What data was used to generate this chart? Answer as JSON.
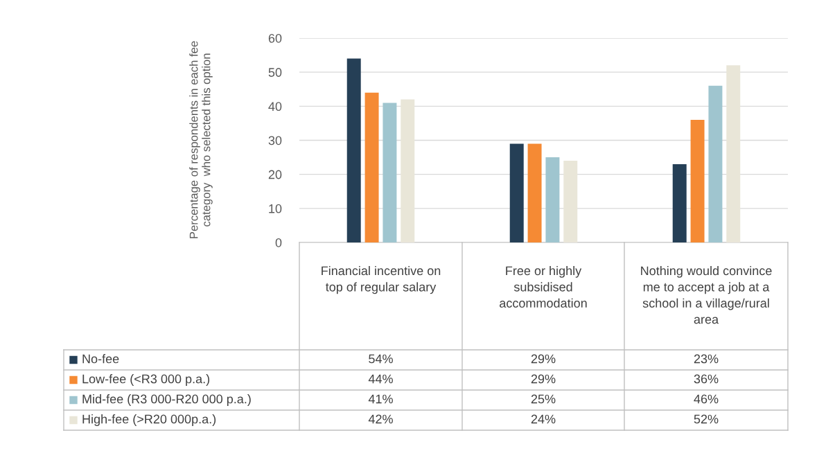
{
  "chart_data": {
    "type": "bar",
    "ylabel": "Percentage of respondents in each fee category  who selected this option",
    "categories": [
      "Financial incentive on top of regular salary",
      "Free or highly subsidised accommodation",
      "Nothing would convince me to accept a job at a school in a village/rural area"
    ],
    "series": [
      {
        "name": "No-fee",
        "color": "#253f56",
        "values": [
          54,
          29,
          23
        ],
        "value_labels": [
          "54%",
          "29%",
          "23%"
        ]
      },
      {
        "name": "Low-fee (<R3 000 p.a.)",
        "color": "#f58a34",
        "values": [
          44,
          29,
          36
        ],
        "value_labels": [
          "44%",
          "29%",
          "36%"
        ]
      },
      {
        "name": "Mid-fee (R3 000-R20 000 p.a.)",
        "color": "#9fc5cf",
        "values": [
          41,
          25,
          46
        ],
        "value_labels": [
          "41%",
          "25%",
          "46%"
        ]
      },
      {
        "name": "High-fee (>R20 000p.a.)",
        "color": "#e9e6d8",
        "values": [
          42,
          24,
          52
        ],
        "value_labels": [
          "42%",
          "24%",
          "52%"
        ]
      }
    ],
    "ylim": [
      0,
      60
    ],
    "yticks": [
      0,
      10,
      20,
      30,
      40,
      50,
      60
    ],
    "grid": "y",
    "legend": "bottom"
  }
}
